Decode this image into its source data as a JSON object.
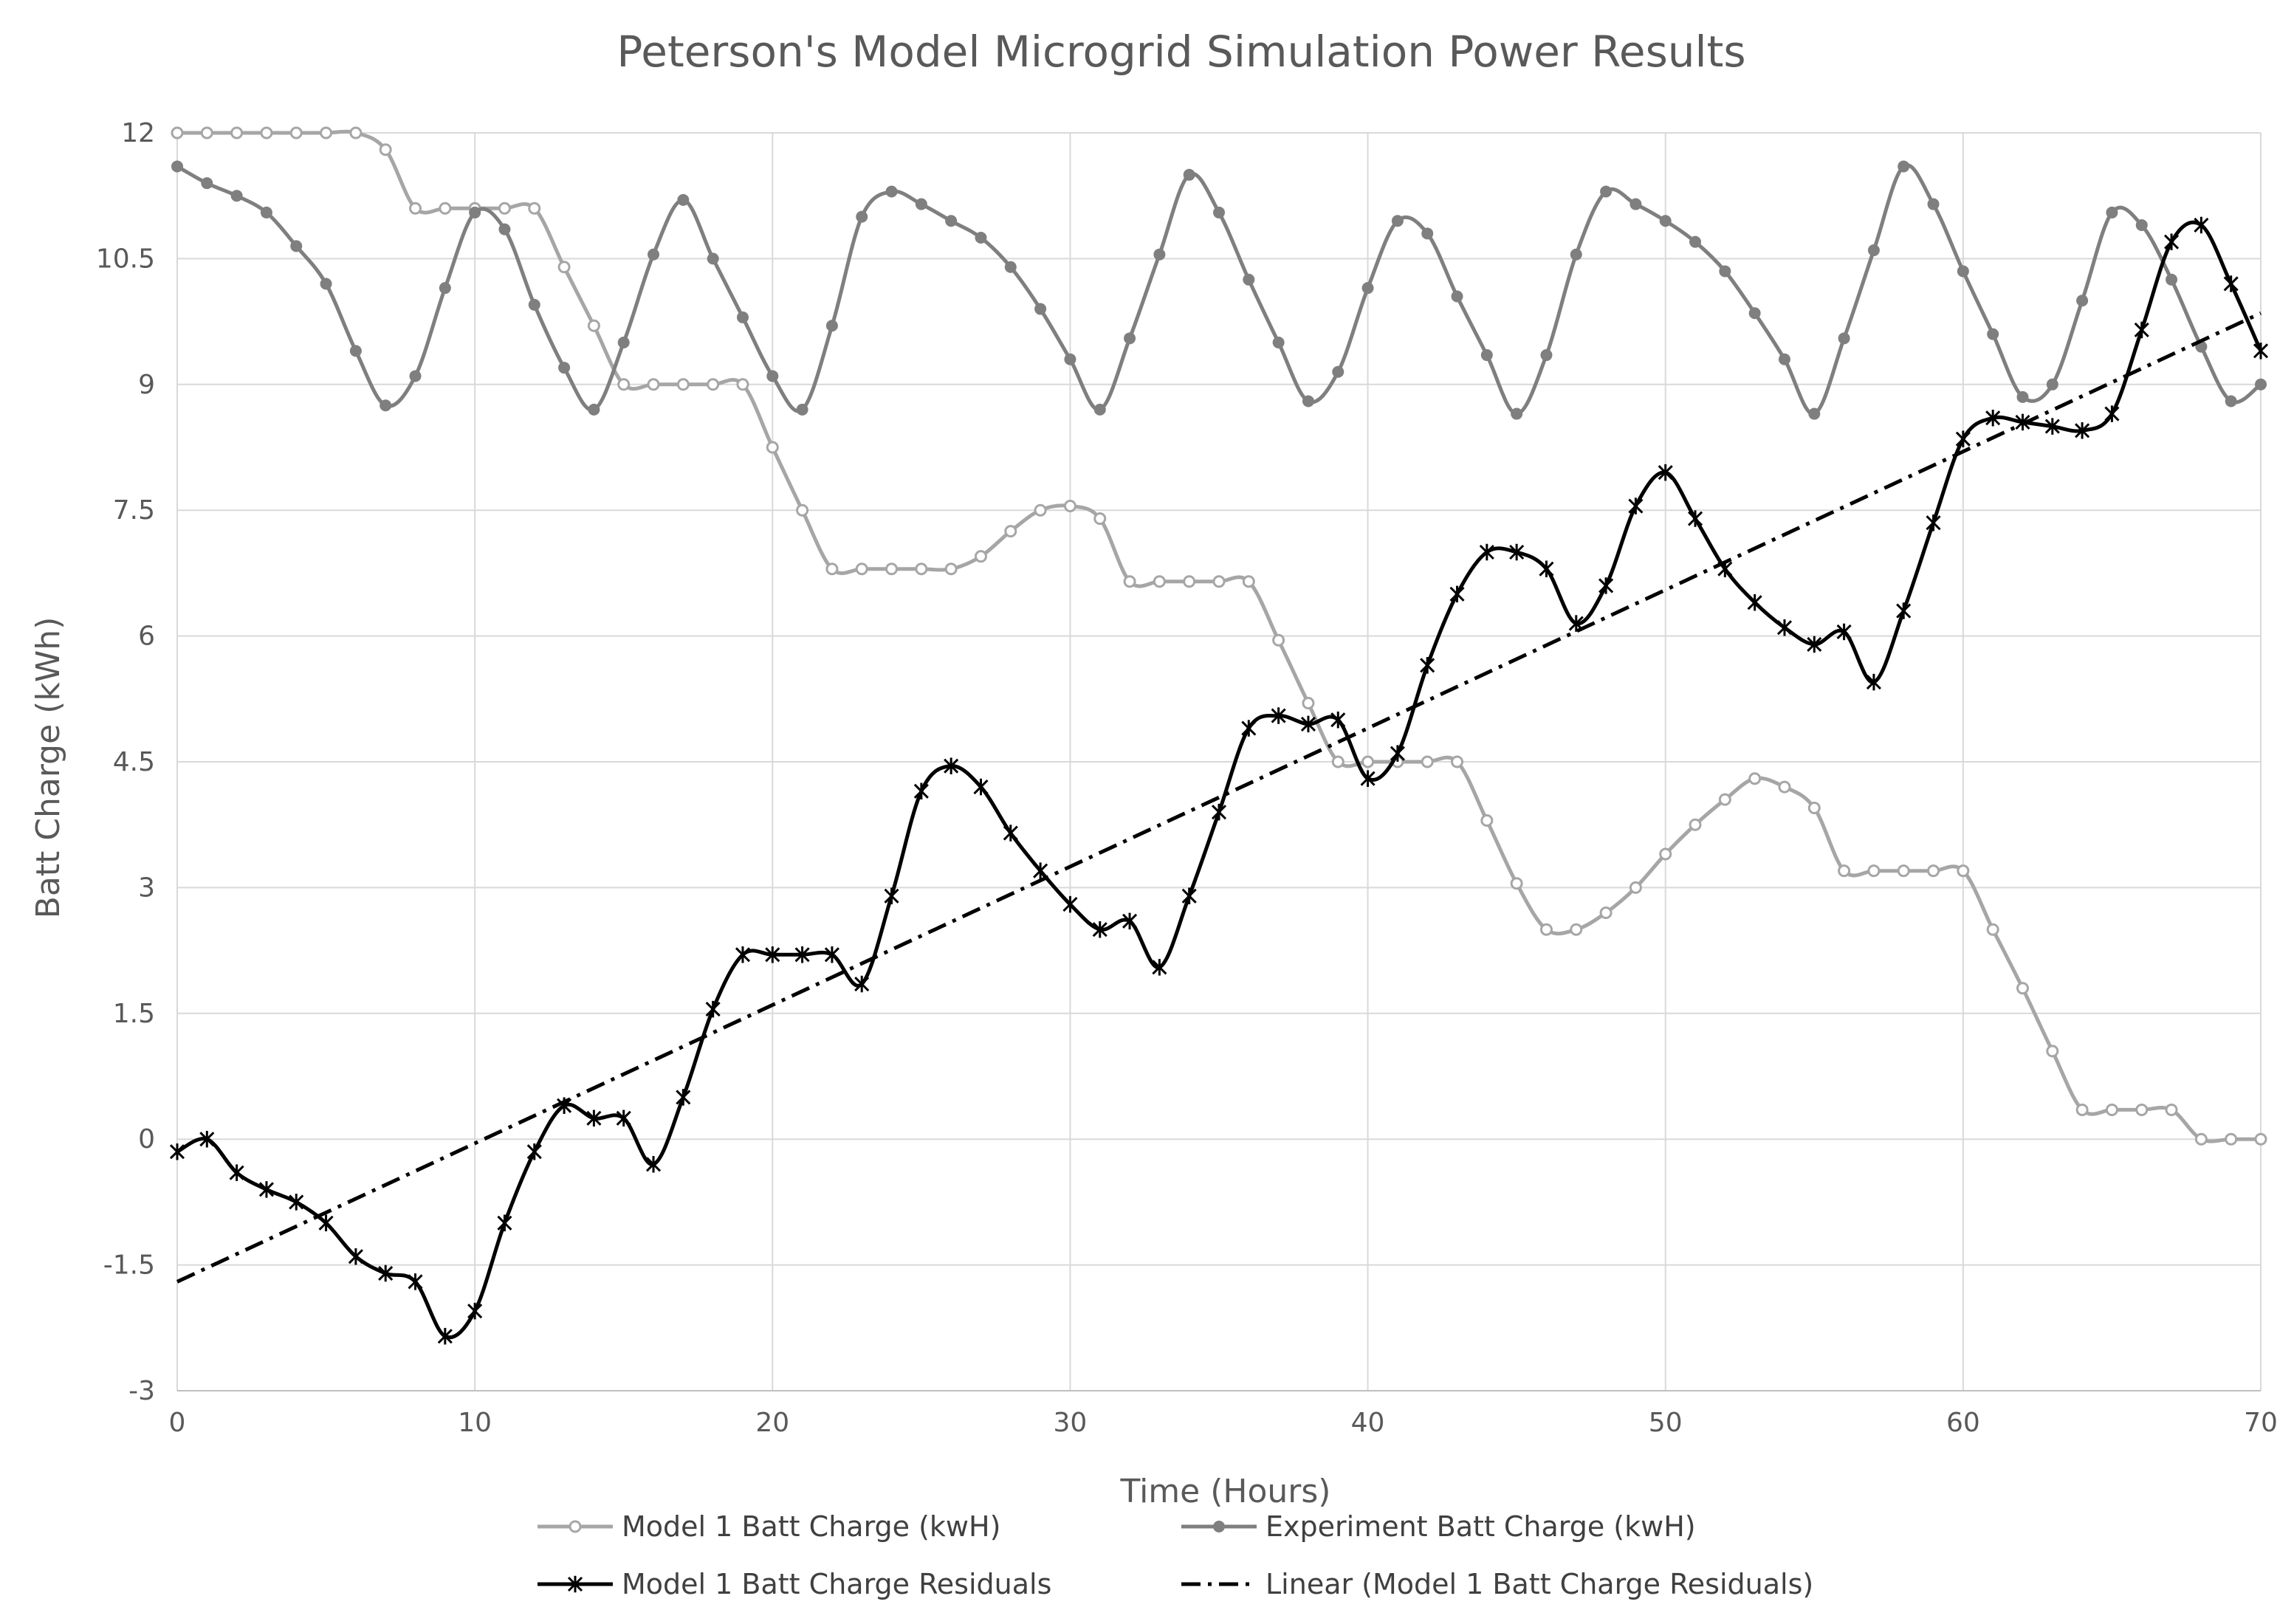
{
  "chart_data": {
    "type": "line",
    "title": "Peterson's Model Microgrid Simulation Power Results",
    "xlabel": "Time (Hours)",
    "ylabel": "Batt Charge (kWh)",
    "xlim": [
      0,
      70
    ],
    "ylim": [
      -3,
      12
    ],
    "x_ticks": [
      0,
      10,
      20,
      30,
      40,
      50,
      60,
      70
    ],
    "x_tick_labels": [
      "0",
      "10",
      "20",
      "30",
      "40",
      "50",
      "60",
      "70"
    ],
    "y_ticks": [
      -3,
      -1.5,
      0,
      1.5,
      3,
      4.5,
      6,
      7.5,
      9,
      10.5,
      12
    ],
    "y_tick_labels": [
      "-3",
      "-1.5",
      "0",
      "1.5",
      "3",
      "4.5",
      "6",
      "7.5",
      "9",
      "10.5",
      "12"
    ],
    "grid": true,
    "legend_position": "bottom",
    "series": [
      {
        "name": "Model 1 Batt Charge (kwH)",
        "color": "#a6a6a6",
        "marker": "open-circle",
        "x": [
          0,
          1,
          2,
          3,
          4,
          5,
          6,
          7,
          8,
          9,
          10,
          11,
          12,
          13,
          14,
          15,
          16,
          17,
          18,
          19,
          20,
          21,
          22,
          23,
          24,
          25,
          26,
          27,
          28,
          29,
          30,
          31,
          32,
          33,
          34,
          35,
          36,
          37,
          38,
          39,
          40,
          41,
          42,
          43,
          44,
          45,
          46,
          47,
          48,
          49,
          50,
          51,
          52,
          53,
          54,
          55,
          56,
          57,
          58,
          59,
          60,
          61,
          62,
          63,
          64,
          65,
          66,
          67,
          68,
          69,
          70
        ],
        "values": [
          12,
          12,
          12,
          12,
          12,
          12,
          12,
          11.8,
          11.1,
          11.1,
          11.1,
          11.1,
          11.1,
          10.4,
          9.7,
          9.0,
          9.0,
          9.0,
          9.0,
          9.0,
          8.25,
          7.5,
          6.8,
          6.8,
          6.8,
          6.8,
          6.8,
          6.95,
          7.25,
          7.5,
          7.55,
          7.4,
          6.65,
          6.65,
          6.65,
          6.65,
          6.65,
          5.95,
          5.2,
          4.5,
          4.5,
          4.5,
          4.5,
          4.5,
          3.8,
          3.05,
          2.5,
          2.5,
          2.7,
          3.0,
          3.4,
          3.75,
          4.05,
          4.3,
          4.2,
          3.95,
          3.2,
          3.2,
          3.2,
          3.2,
          3.2,
          2.5,
          1.8,
          1.05,
          0.35,
          0.35,
          0.35,
          0.35,
          0,
          0,
          0
        ]
      },
      {
        "name": "Experiment Batt Charge (kwH)",
        "color": "#7f7f7f",
        "marker": "filled-circle",
        "x": [
          0,
          1,
          2,
          3,
          4,
          5,
          6,
          7,
          8,
          9,
          10,
          11,
          12,
          13,
          14,
          15,
          16,
          17,
          18,
          19,
          20,
          21,
          22,
          23,
          24,
          25,
          26,
          27,
          28,
          29,
          30,
          31,
          32,
          33,
          34,
          35,
          36,
          37,
          38,
          39,
          40,
          41,
          42,
          43,
          44,
          45,
          46,
          47,
          48,
          49,
          50,
          51,
          52,
          53,
          54,
          55,
          56,
          57,
          58,
          59,
          60,
          61,
          62,
          63,
          64,
          65,
          66,
          67,
          68,
          69,
          70
        ],
        "values": [
          11.6,
          11.4,
          11.25,
          11.05,
          10.65,
          10.2,
          9.4,
          8.75,
          9.1,
          10.15,
          11.05,
          10.85,
          9.95,
          9.2,
          8.7,
          9.5,
          10.55,
          11.2,
          10.5,
          9.8,
          9.1,
          8.7,
          9.7,
          11.0,
          11.3,
          11.15,
          10.95,
          10.75,
          10.4,
          9.9,
          9.3,
          8.7,
          9.55,
          10.55,
          11.5,
          11.05,
          10.25,
          9.5,
          8.8,
          9.15,
          10.15,
          10.95,
          10.8,
          10.05,
          9.35,
          8.65,
          9.35,
          10.55,
          11.3,
          11.15,
          10.95,
          10.7,
          10.35,
          9.85,
          9.3,
          8.65,
          9.55,
          10.6,
          11.6,
          11.15,
          10.35,
          9.6,
          8.85,
          9.0,
          10.0,
          11.05,
          10.9,
          10.25,
          9.45,
          8.8,
          9.0
        ]
      },
      {
        "name": "Model 1 Batt Charge Residuals",
        "color": "#000000",
        "marker": "star",
        "x": [
          0,
          1,
          2,
          3,
          4,
          5,
          6,
          7,
          8,
          9,
          10,
          11,
          12,
          13,
          14,
          15,
          16,
          17,
          18,
          19,
          20,
          21,
          22,
          23,
          24,
          25,
          26,
          27,
          28,
          29,
          30,
          31,
          32,
          33,
          34,
          35,
          36,
          37,
          38,
          39,
          40,
          41,
          42,
          43,
          44,
          45,
          46,
          47,
          48,
          49,
          50,
          51,
          52,
          53,
          54,
          55,
          56,
          57,
          58,
          59,
          60,
          61,
          62,
          63,
          64,
          65,
          66,
          67,
          68,
          69,
          70
        ],
        "values": [
          -0.15,
          0,
          -0.4,
          -0.6,
          -0.75,
          -1.0,
          -1.4,
          -1.6,
          -1.7,
          -2.35,
          -2.05,
          -1.0,
          -0.15,
          0.4,
          0.25,
          0.25,
          -0.3,
          0.5,
          1.55,
          2.2,
          2.2,
          2.2,
          2.2,
          1.85,
          2.9,
          4.15,
          4.45,
          4.2,
          3.65,
          3.2,
          2.8,
          2.5,
          2.6,
          2.05,
          2.9,
          3.9,
          4.9,
          5.05,
          4.95,
          5.0,
          4.3,
          4.6,
          5.65,
          6.5,
          7.0,
          7.0,
          6.8,
          6.15,
          6.6,
          7.55,
          7.95,
          7.4,
          6.8,
          6.4,
          6.1,
          5.9,
          6.05,
          5.45,
          6.3,
          7.35,
          8.35,
          8.6,
          8.55,
          8.5,
          8.45,
          8.65,
          9.65,
          10.7,
          10.9,
          10.2,
          9.4
        ]
      },
      {
        "name": "Linear (Model 1 Batt Charge Residuals)",
        "color": "#000000",
        "style": "dash-dot",
        "x": [
          0,
          70
        ],
        "values": [
          -1.7,
          9.85
        ]
      }
    ]
  }
}
